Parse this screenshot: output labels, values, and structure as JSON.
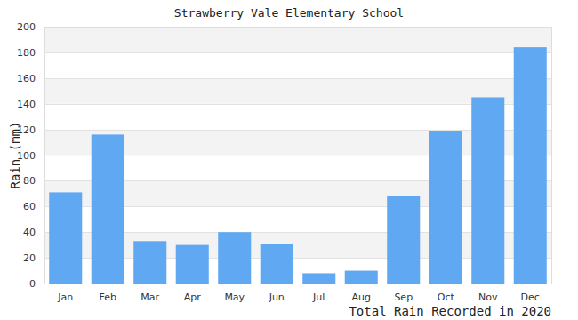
{
  "chart_data": {
    "type": "bar",
    "title": "Strawberry Vale Elementary School",
    "y_label": "Rain (mm)",
    "x_label": "Total Rain Recorded in 2020",
    "categories": [
      "Jan",
      "Feb",
      "Mar",
      "Apr",
      "May",
      "Jun",
      "Jul",
      "Aug",
      "Sep",
      "Oct",
      "Nov",
      "Dec"
    ],
    "values": [
      71,
      116,
      33,
      30,
      40,
      31,
      8,
      10,
      68,
      119,
      145,
      184
    ],
    "color": "#60a8f2",
    "ylim": [
      0,
      200
    ],
    "yticks": [
      0,
      20,
      40,
      60,
      80,
      100,
      120,
      140,
      160,
      180,
      200
    ],
    "grid": true
  }
}
